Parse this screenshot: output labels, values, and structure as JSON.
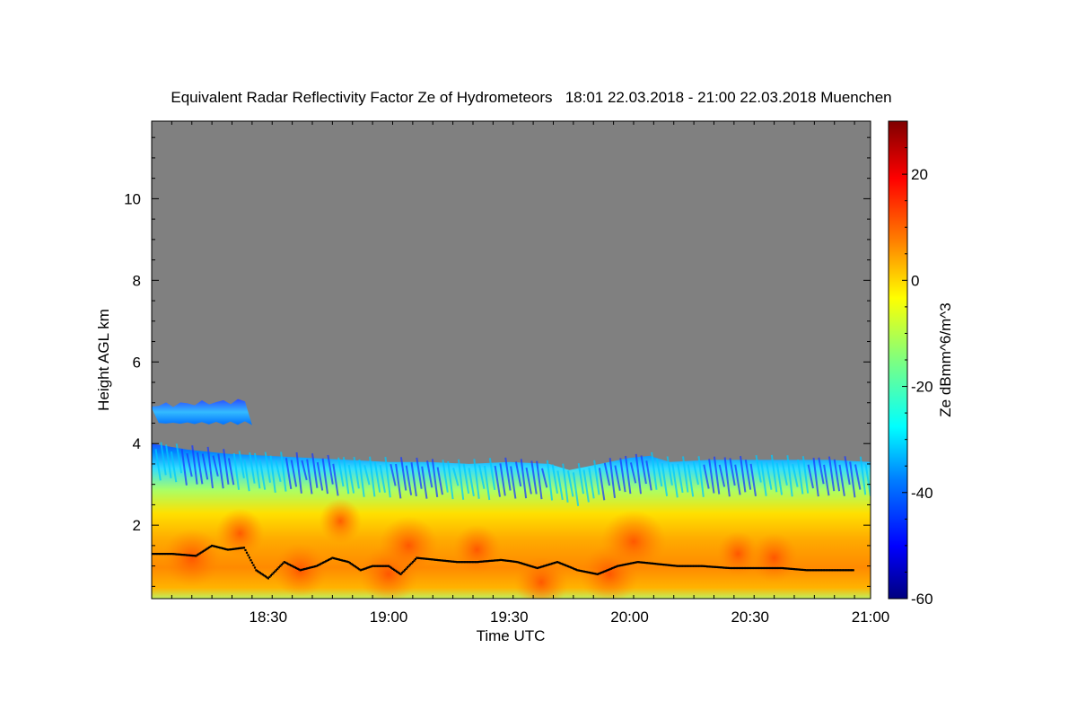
{
  "chart_data": {
    "type": "heatmap",
    "title": "Equivalent Radar Reflectivity Factor Ze of Hydrometeors   18:01 22.03.2018 - 21:00 22.03.2018 Muenchen",
    "xlabel": "Time UTC",
    "ylabel": "Height AGL km",
    "colorbar_label": "Ze dBmm^6/m^3",
    "xlim_minutes": [
      1081,
      1260
    ],
    "ylim_km": [
      0.2,
      11.9
    ],
    "x_ticks": [
      {
        "minute": 1110,
        "label": "18:30"
      },
      {
        "minute": 1140,
        "label": "19:00"
      },
      {
        "minute": 1170,
        "label": "19:30"
      },
      {
        "minute": 1200,
        "label": "20:00"
      },
      {
        "minute": 1230,
        "label": "20:30"
      },
      {
        "minute": 1260,
        "label": "21:00"
      }
    ],
    "y_ticks": [
      {
        "value": 2,
        "label": "2"
      },
      {
        "value": 4,
        "label": "4"
      },
      {
        "value": 6,
        "label": "6"
      },
      {
        "value": 8,
        "label": "8"
      },
      {
        "value": 10,
        "label": "10"
      }
    ],
    "colorbar_range": [
      -60,
      30
    ],
    "colorbar_ticks": [
      {
        "value": 20,
        "label": "20"
      },
      {
        "value": 0,
        "label": "0"
      },
      {
        "value": -20,
        "label": "-20"
      },
      {
        "value": -40,
        "label": "-40"
      },
      {
        "value": -60,
        "label": "-60"
      }
    ],
    "colormap": [
      "#00007f",
      "#0000ff",
      "#007fff",
      "#00ffff",
      "#7fff7f",
      "#ffff00",
      "#ff7f00",
      "#ff0000",
      "#7f0000"
    ],
    "no_signal_color": "#808080",
    "cloud_top_km": [
      [
        1081,
        4.0
      ],
      [
        1090,
        3.85
      ],
      [
        1100,
        3.75
      ],
      [
        1110,
        3.7
      ],
      [
        1120,
        3.65
      ],
      [
        1130,
        3.6
      ],
      [
        1140,
        3.55
      ],
      [
        1150,
        3.55
      ],
      [
        1160,
        3.5
      ],
      [
        1170,
        3.55
      ],
      [
        1180,
        3.5
      ],
      [
        1185,
        3.35
      ],
      [
        1190,
        3.45
      ],
      [
        1200,
        3.65
      ],
      [
        1205,
        3.7
      ],
      [
        1210,
        3.55
      ],
      [
        1220,
        3.6
      ],
      [
        1230,
        3.6
      ],
      [
        1240,
        3.6
      ],
      [
        1250,
        3.6
      ],
      [
        1260,
        3.55
      ]
    ],
    "upper_layer": {
      "start_minute": 1081,
      "end_minute": 1106,
      "base_km": 4.5,
      "top_km": 5.0
    },
    "cloud_base_points_km": [
      [
        1081,
        1.3
      ],
      [
        1086,
        1.3
      ],
      [
        1092,
        1.25
      ],
      [
        1096,
        1.5
      ],
      [
        1100,
        1.4
      ],
      [
        1104,
        1.45
      ],
      [
        1107,
        0.9
      ],
      [
        1110,
        0.7
      ],
      [
        1114,
        1.1
      ],
      [
        1118,
        0.9
      ],
      [
        1122,
        1.0
      ],
      [
        1126,
        1.2
      ],
      [
        1130,
        1.1
      ],
      [
        1133,
        0.9
      ],
      [
        1136,
        1.0
      ],
      [
        1140,
        1.0
      ],
      [
        1143,
        0.8
      ],
      [
        1147,
        1.2
      ],
      [
        1152,
        1.15
      ],
      [
        1157,
        1.1
      ],
      [
        1162,
        1.1
      ],
      [
        1168,
        1.15
      ],
      [
        1172,
        1.1
      ],
      [
        1177,
        0.95
      ],
      [
        1182,
        1.1
      ],
      [
        1187,
        0.9
      ],
      [
        1192,
        0.8
      ],
      [
        1197,
        1.0
      ],
      [
        1202,
        1.1
      ],
      [
        1207,
        1.05
      ],
      [
        1212,
        1.0
      ],
      [
        1218,
        1.0
      ],
      [
        1225,
        0.95
      ],
      [
        1232,
        0.95
      ],
      [
        1238,
        0.95
      ],
      [
        1244,
        0.9
      ],
      [
        1250,
        0.9
      ],
      [
        1256,
        0.9
      ]
    ],
    "intense_cores": [
      {
        "minute": 1091,
        "km": 1.2,
        "ze_dbz": 12
      },
      {
        "minute": 1103,
        "km": 1.8,
        "ze_dbz": 8
      },
      {
        "minute": 1118,
        "km": 0.9,
        "ze_dbz": 10
      },
      {
        "minute": 1128,
        "km": 2.1,
        "ze_dbz": 6
      },
      {
        "minute": 1140,
        "km": 0.8,
        "ze_dbz": 12
      },
      {
        "minute": 1145,
        "km": 1.5,
        "ze_dbz": 12
      },
      {
        "minute": 1162,
        "km": 1.4,
        "ze_dbz": 8
      },
      {
        "minute": 1178,
        "km": 0.6,
        "ze_dbz": 10
      },
      {
        "minute": 1195,
        "km": 0.8,
        "ze_dbz": 12
      },
      {
        "minute": 1201,
        "km": 1.6,
        "ze_dbz": 14
      },
      {
        "minute": 1227,
        "km": 1.3,
        "ze_dbz": 6
      },
      {
        "minute": 1236,
        "km": 1.2,
        "ze_dbz": 8
      }
    ]
  }
}
